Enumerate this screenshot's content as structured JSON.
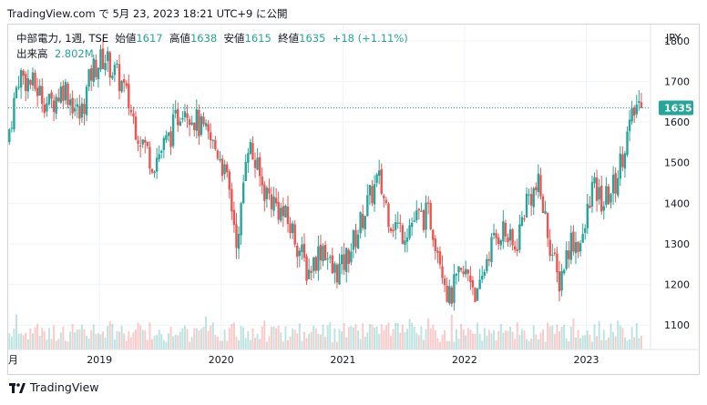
{
  "header": {
    "text": "TradingView.com で 5月 23, 2023 18:21 UTC+9 に公開"
  },
  "legend": {
    "symbol": "中部電力, 1週, TSE",
    "open_label": "始値",
    "open": "1617",
    "high_label": "高値",
    "high": "1638",
    "low_label": "安値",
    "low": "1615",
    "close_label": "終値",
    "close": "1635",
    "change": "+18 (+1.11%)",
    "volume_label": "出来高",
    "volume": "2.802M"
  },
  "footer": {
    "brand": "TradingView"
  },
  "colors": {
    "up": "#26a69a",
    "down": "#ef5350",
    "grid": "#f0f3fa",
    "text": "#131722"
  },
  "chart_data": {
    "type": "candlestick",
    "currency": "JPY",
    "last_price": 1635,
    "ylim": [
      1040,
      1840
    ],
    "y_ticks": [
      1100,
      1200,
      1300,
      1400,
      1500,
      1600,
      1700,
      1800
    ],
    "x_ticks": [
      {
        "label": "月",
        "t": 2018.25
      },
      {
        "label": "2019",
        "t": 2019.0
      },
      {
        "label": "2020",
        "t": 2020.0
      },
      {
        "label": "2021",
        "t": 2021.0
      },
      {
        "label": "2022",
        "t": 2022.0
      },
      {
        "label": "2023",
        "t": 2023.0
      }
    ],
    "xlim": [
      2018.25,
      2023.52
    ],
    "anchors": [
      [
        2018.25,
        1550
      ],
      [
        2018.35,
        1720
      ],
      [
        2018.5,
        1680
      ],
      [
        2018.6,
        1640
      ],
      [
        2018.72,
        1690
      ],
      [
        2018.85,
        1610
      ],
      [
        2018.95,
        1730
      ],
      [
        2019.05,
        1760
      ],
      [
        2019.2,
        1690
      ],
      [
        2019.32,
        1580
      ],
      [
        2019.45,
        1500
      ],
      [
        2019.58,
        1560
      ],
      [
        2019.7,
        1650
      ],
      [
        2019.85,
        1580
      ],
      [
        2020.0,
        1520
      ],
      [
        2020.08,
        1420
      ],
      [
        2020.15,
        1290
      ],
      [
        2020.22,
        1560
      ],
      [
        2020.35,
        1440
      ],
      [
        2020.5,
        1380
      ],
      [
        2020.6,
        1330
      ],
      [
        2020.72,
        1230
      ],
      [
        2020.85,
        1300
      ],
      [
        2020.92,
        1230
      ],
      [
        2021.0,
        1240
      ],
      [
        2021.12,
        1320
      ],
      [
        2021.2,
        1390
      ],
      [
        2021.3,
        1460
      ],
      [
        2021.4,
        1360
      ],
      [
        2021.5,
        1330
      ],
      [
        2021.6,
        1360
      ],
      [
        2021.72,
        1370
      ],
      [
        2021.82,
        1260
      ],
      [
        2021.88,
        1160
      ],
      [
        2021.95,
        1210
      ],
      [
        2022.05,
        1230
      ],
      [
        2022.12,
        1160
      ],
      [
        2022.2,
        1280
      ],
      [
        2022.32,
        1340
      ],
      [
        2022.42,
        1280
      ],
      [
        2022.52,
        1410
      ],
      [
        2022.62,
        1440
      ],
      [
        2022.7,
        1320
      ],
      [
        2022.78,
        1200
      ],
      [
        2022.88,
        1310
      ],
      [
        2022.98,
        1300
      ],
      [
        2023.05,
        1440
      ],
      [
        2023.15,
        1400
      ],
      [
        2023.25,
        1450
      ],
      [
        2023.32,
        1540
      ],
      [
        2023.38,
        1600
      ],
      [
        2023.43,
        1650
      ],
      [
        2023.46,
        1635
      ]
    ]
  }
}
